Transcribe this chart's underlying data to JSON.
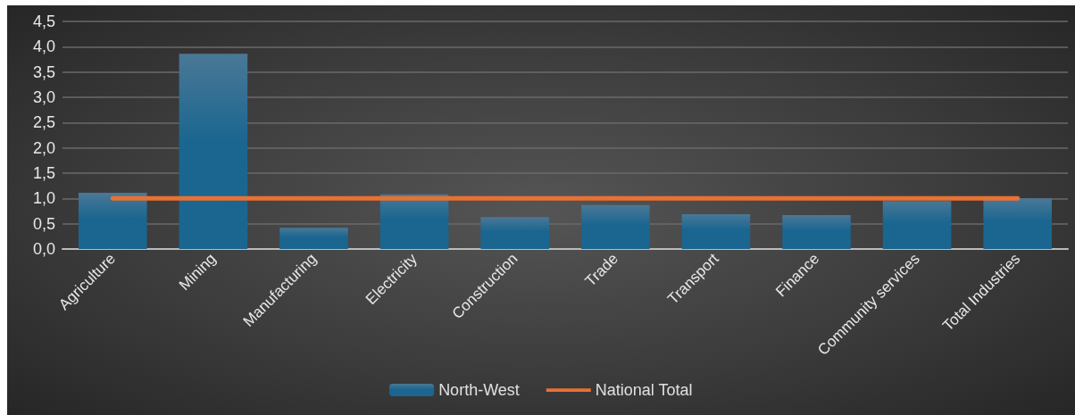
{
  "chart_data": {
    "type": "bar",
    "categories": [
      "Agriculture",
      "Mining",
      "Manufacturing",
      "Electricity",
      "Construction",
      "Trade",
      "Transport",
      "Finance",
      "Community services",
      "Total Industries"
    ],
    "series": [
      {
        "name": "North-West",
        "color": "#1a6690",
        "values": [
          1.11,
          3.86,
          0.42,
          1.08,
          0.63,
          0.87,
          0.69,
          0.67,
          0.95,
          1.0
        ]
      },
      {
        "name": "National Total",
        "type": "line",
        "color": "#e97132",
        "values": [
          1.0,
          1.0,
          1.0,
          1.0,
          1.0,
          1.0,
          1.0,
          1.0,
          1.0,
          1.0
        ]
      }
    ],
    "ylim": [
      0,
      4.5
    ],
    "yticks": [
      {
        "value": 0,
        "label": "0,0"
      },
      {
        "value": 0.5,
        "label": "0,5"
      },
      {
        "value": 1,
        "label": "1,0"
      },
      {
        "value": 1.5,
        "label": "1,5"
      },
      {
        "value": 2,
        "label": "2,0"
      },
      {
        "value": 2.5,
        "label": "2,5"
      },
      {
        "value": 3,
        "label": "3,0"
      },
      {
        "value": 3.5,
        "label": "3,5"
      },
      {
        "value": 4,
        "label": "4,0"
      },
      {
        "value": 4.5,
        "label": "4,5"
      }
    ],
    "grid": "y",
    "legend": "bottom",
    "marker": "none"
  }
}
